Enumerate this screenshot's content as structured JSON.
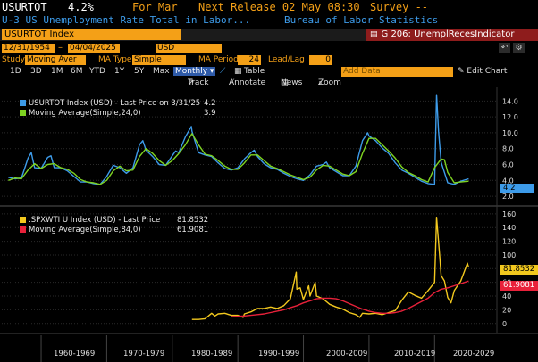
{
  "header": {
    "ticker": "USURTOT",
    "value": "4.2%",
    "period": "For Mar",
    "next_release": "Next Release 02 May 08:30",
    "survey": "Survey --",
    "description": "U-3 US Unemployment Rate Total in Labor...",
    "source": "Bureau of Labor Statistics"
  },
  "toolbar": {
    "security": "USURTOT Index",
    "function": "G 206: UnemplRecesIndicator",
    "function_icon": "chart-icon",
    "date_start": "12/31/1954",
    "date_end": "04/04/2025",
    "currency": "USD",
    "undo_icon": "undo-icon",
    "settings_icon": "gear-icon"
  },
  "study": {
    "study_label": "Study",
    "study_value": "Moving Aver",
    "ma_type_label": "MA Type",
    "ma_type_value": "Simple",
    "ma_period_label": "MA Period",
    "ma_period_value": "24",
    "leadlag_label": "Lead/Lag",
    "leadlag_value": "0"
  },
  "periods": [
    "1D",
    "3D",
    "1M",
    "6M",
    "YTD",
    "1Y",
    "5Y",
    "Max"
  ],
  "frequency": "Monthly",
  "table_label": "Table",
  "add_data_placeholder": "Add Data",
  "edit_chart": "Edit Chart",
  "tools": {
    "track": "Track",
    "annotate": "Annotate",
    "news": "News",
    "zoom": "Zoom"
  },
  "colors": {
    "accent": "#f4a017",
    "blue": "#3d9be9",
    "green": "#7ed321",
    "yellow": "#f2c81e",
    "red": "#e8213a"
  },
  "chart_data": [
    {
      "type": "line",
      "legend": [
        {
          "name": "USURTOT Index (USD) - Last Price on 3/31/25",
          "value": "4.2"
        },
        {
          "name": "Moving Average(Simple,24,0)",
          "value": "3.9"
        }
      ],
      "yticks": [
        2.0,
        4.0,
        6.0,
        8.0,
        10.0,
        12.0,
        14.0
      ],
      "ylim": [
        1,
        15.5
      ],
      "last_value_label": "4.2",
      "series": [
        {
          "name": "USURTOT Index (USD) - Last Price on 3/31/25",
          "x": [
            1955,
            1956,
            1957,
            1958,
            1958.5,
            1959,
            1960,
            1961,
            1961.5,
            1962,
            1963,
            1964,
            1965,
            1966,
            1967,
            1968,
            1969,
            1970,
            1971,
            1972,
            1973,
            1974,
            1975,
            1975.5,
            1976,
            1977,
            1978,
            1979,
            1980,
            1980.5,
            1981,
            1982,
            1982.9,
            1983,
            1984,
            1985,
            1986,
            1987,
            1988,
            1989,
            1990,
            1991,
            1992,
            1992.5,
            1993,
            1994,
            1995,
            1996,
            1997,
            1998,
            1999,
            2000,
            2001,
            2002,
            2003,
            2003.5,
            2004,
            2005,
            2006,
            2007,
            2008,
            2009,
            2009.8,
            2010,
            2011,
            2012,
            2013,
            2014,
            2015,
            2016,
            2017,
            2018,
            2019,
            2020,
            2020.3,
            2020.6,
            2021,
            2022,
            2023,
            2024,
            2025.2
          ],
          "values": [
            4.4,
            4.2,
            4.3,
            6.8,
            7.5,
            5.6,
            5.5,
            6.9,
            7.1,
            5.6,
            5.6,
            5.2,
            4.5,
            3.8,
            3.8,
            3.6,
            3.5,
            4.5,
            5.9,
            5.6,
            4.9,
            5.6,
            8.5,
            9.0,
            7.8,
            7.0,
            6.0,
            5.9,
            7.1,
            7.7,
            7.5,
            9.5,
            10.8,
            10.2,
            7.5,
            7.2,
            7.0,
            6.2,
            5.5,
            5.3,
            5.6,
            6.7,
            7.5,
            7.8,
            7.0,
            6.1,
            5.6,
            5.4,
            4.9,
            4.5,
            4.2,
            4.0,
            4.7,
            5.8,
            6.0,
            6.3,
            5.6,
            5.1,
            4.6,
            4.6,
            5.8,
            9.0,
            10.0,
            9.6,
            9.0,
            8.1,
            7.4,
            6.2,
            5.3,
            4.9,
            4.4,
            3.9,
            3.6,
            3.5,
            14.8,
            10.2,
            6.3,
            3.7,
            3.5,
            3.9,
            4.2
          ]
        },
        {
          "name": "Moving Average(Simple,24,0)",
          "x": [
            1955,
            1956,
            1957,
            1958,
            1959,
            1960,
            1961,
            1962,
            1963,
            1964,
            1965,
            1966,
            1967,
            1968,
            1969,
            1970,
            1971,
            1972,
            1973,
            1974,
            1975,
            1976,
            1977,
            1978,
            1979,
            1980,
            1981,
            1982,
            1983,
            1984,
            1985,
            1986,
            1987,
            1988,
            1989,
            1990,
            1991,
            1992,
            1993,
            1994,
            1995,
            1996,
            1997,
            1998,
            1999,
            2000,
            2001,
            2002,
            2003,
            2004,
            2005,
            2006,
            2007,
            2008,
            2009,
            2010,
            2011,
            2012,
            2013,
            2014,
            2015,
            2016,
            2017,
            2018,
            2019,
            2020,
            2021,
            2021.5,
            2022,
            2023,
            2024,
            2025.2
          ],
          "values": [
            4.0,
            4.3,
            4.2,
            5.3,
            6.1,
            5.5,
            6.0,
            6.1,
            5.6,
            5.4,
            4.9,
            4.1,
            3.8,
            3.7,
            3.5,
            4.0,
            5.2,
            5.8,
            5.2,
            5.3,
            7.0,
            8.0,
            7.4,
            6.5,
            5.9,
            6.5,
            7.4,
            8.5,
            9.9,
            8.5,
            7.3,
            7.1,
            6.5,
            5.8,
            5.4,
            5.4,
            6.2,
            7.2,
            7.2,
            6.5,
            5.8,
            5.5,
            5.1,
            4.7,
            4.4,
            4.1,
            4.4,
            5.3,
            5.9,
            5.8,
            5.3,
            4.8,
            4.6,
            5.1,
            7.4,
            9.3,
            9.3,
            8.5,
            7.7,
            6.8,
            5.7,
            5.0,
            4.6,
            4.1,
            3.8,
            5.6,
            6.7,
            6.6,
            5.0,
            3.7,
            3.8,
            3.9
          ]
        }
      ]
    },
    {
      "type": "line",
      "legend": [
        {
          "name": ".SPXWTI U Index (USD) - Last Price",
          "value": "81.8532"
        },
        {
          "name": "Moving Average(Simple,84,0)",
          "value": "61.9081"
        }
      ],
      "yticks": [
        0,
        20,
        40,
        60,
        80,
        100,
        120,
        140,
        160
      ],
      "ylim": [
        -12,
        165
      ],
      "last_value_labels": [
        "81.8532",
        "61.9081"
      ],
      "series": [
        {
          "name": ".SPXWTI U Index (USD) - Last Price",
          "x": [
            1983,
            1984,
            1985,
            1986,
            1986.5,
            1987,
            1988,
            1989,
            1990,
            1990.8,
            1991,
            1992,
            1993,
            1994,
            1995,
            1996,
            1997,
            1998,
            1998.9,
            1999,
            1999.5,
            2000,
            2000.8,
            2001,
            2001.8,
            2002,
            2003,
            2004,
            2005,
            2006,
            2007,
            2008,
            2008.6,
            2009,
            2010,
            2011,
            2012,
            2013,
            2014,
            2015,
            2016,
            2017,
            2018,
            2019,
            2020,
            2020.3,
            2020.8,
            2021,
            2021.5,
            2022,
            2022.5,
            2023,
            2024,
            2025,
            2025.2
          ],
          "values": [
            6,
            6,
            7,
            15,
            11,
            14,
            15,
            12,
            12,
            9,
            14,
            17,
            22,
            22,
            24,
            22,
            26,
            36,
            75,
            50,
            52,
            35,
            55,
            40,
            60,
            40,
            36,
            28,
            24,
            21,
            16,
            13,
            9,
            15,
            14,
            15,
            13,
            16,
            19,
            34,
            46,
            41,
            37,
            48,
            60,
            155,
            95,
            70,
            62,
            38,
            30,
            48,
            62,
            88,
            82
          ]
        },
        {
          "name": "Moving Average(Simple,84,0)",
          "x": [
            1989,
            1990,
            1991,
            1992,
            1993,
            1994,
            1995,
            1996,
            1997,
            1998,
            1999,
            2000,
            2001,
            2002,
            2003,
            2004,
            2005,
            2006,
            2007,
            2008,
            2009,
            2010,
            2011,
            2012,
            2013,
            2014,
            2015,
            2016,
            2017,
            2018,
            2019,
            2020,
            2021,
            2022,
            2023,
            2024,
            2025.2
          ],
          "values": [
            10,
            10.5,
            11,
            12,
            13,
            14,
            16,
            18,
            20,
            23,
            26,
            30,
            33,
            36,
            37,
            37,
            36,
            33,
            29,
            25,
            21,
            18,
            16,
            15,
            15,
            16,
            18,
            22,
            27,
            32,
            37,
            45,
            50,
            52,
            55,
            58,
            62
          ]
        }
      ]
    }
  ],
  "x_axis": {
    "decades": [
      "1960-1969",
      "1970-1979",
      "1980-1989",
      "1990-1999",
      "2000-2009",
      "2010-2019",
      "2020-2029"
    ]
  }
}
